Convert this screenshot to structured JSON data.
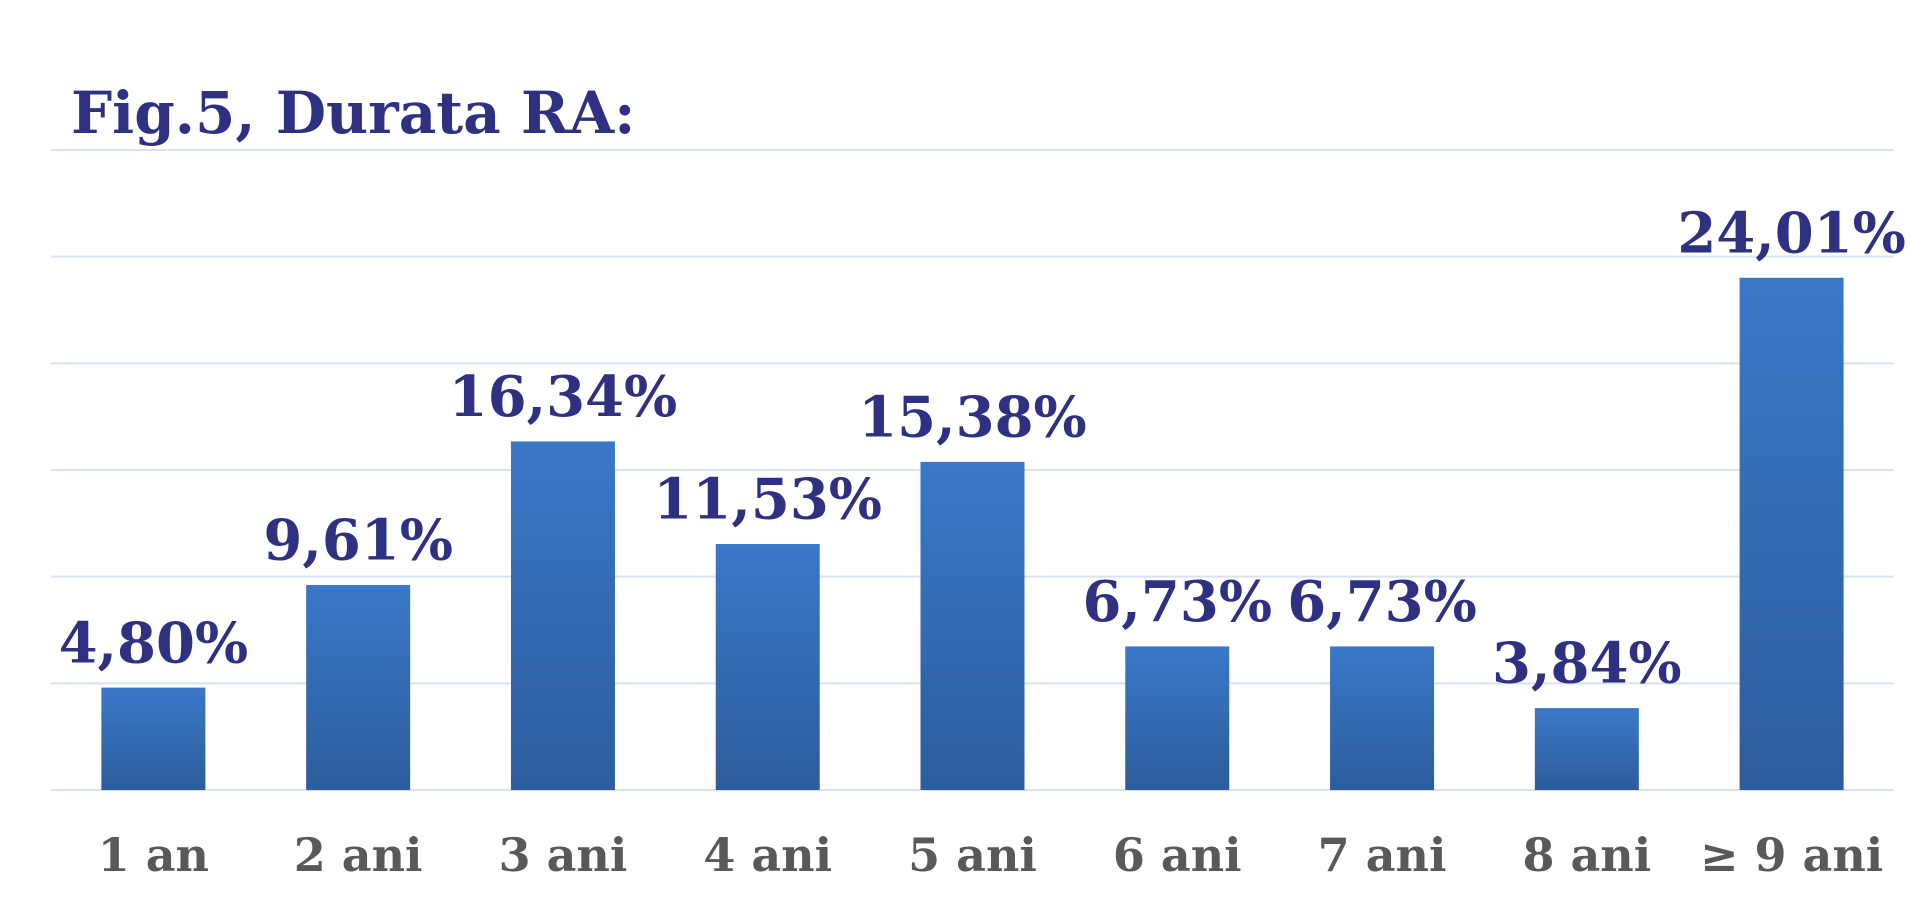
{
  "chart_data": {
    "type": "bar",
    "title": "Fig.5, Durata RA:",
    "categories": [
      "1 an",
      "2 ani",
      "3 ani",
      "4 ani",
      "5 ani",
      "6 ani",
      "7 ani",
      "8 ani",
      "≥ 9 ani"
    ],
    "values": [
      4.8,
      9.61,
      16.34,
      11.53,
      15.38,
      6.73,
      6.73,
      3.84,
      24.01
    ],
    "value_labels": [
      "4,80%",
      "9,61%",
      "16,34%",
      "11,53%",
      "15,38%",
      "6,73%",
      "6,73%",
      "3,84%",
      "24,01%"
    ],
    "color": "#3a78c8",
    "ylim": [
      0,
      30
    ],
    "yticks": [
      0,
      5,
      10,
      15,
      20,
      25,
      30
    ],
    "grid": true
  }
}
